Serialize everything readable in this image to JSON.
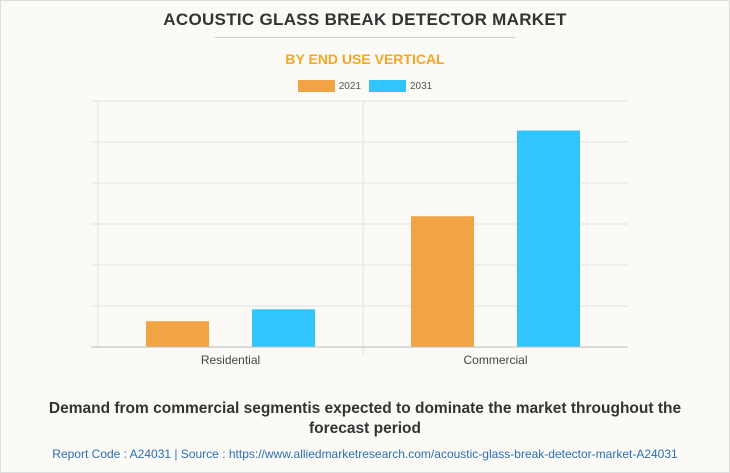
{
  "chart_data": {
    "type": "bar",
    "title": "ACOUSTIC GLASS BREAK DETECTOR MARKET",
    "subtitle": "BY END USE VERTICAL",
    "categories": [
      "Residential",
      "Commercial"
    ],
    "series": [
      {
        "name": "2021",
        "color": "#f2a444",
        "values": [
          0.63,
          3.19
        ]
      },
      {
        "name": "2031",
        "color": "#31c5fd",
        "values": [
          0.92,
          5.28
        ]
      }
    ],
    "xlabel": "",
    "ylabel": "",
    "ylim": [
      0,
      6
    ],
    "grid": true,
    "legend": "top-center"
  },
  "caption": "Demand from commercial segmentis expected to dominate the market throughout the forecast period",
  "footer": "Report Code : A24031  |  Source : https://www.alliedmarketresearch.com/acoustic-glass-break-detector-market-A24031"
}
